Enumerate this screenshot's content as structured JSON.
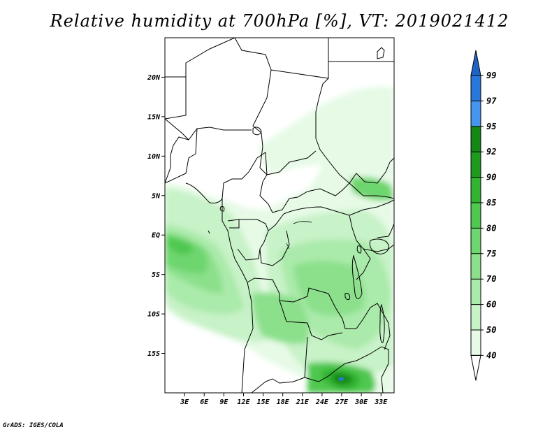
{
  "title": "Relative humidity at 700hPa [%], VT: 2019021412",
  "credit": "GrADS: IGES/COLA",
  "map": {
    "lon_range": [
      0,
      35
    ],
    "lat_range": [
      -20,
      25
    ],
    "lat_ticks": [
      {
        "v": 20,
        "label": "20N"
      },
      {
        "v": 15,
        "label": "15N"
      },
      {
        "v": 10,
        "label": "10N"
      },
      {
        "v": 5,
        "label": "5N"
      },
      {
        "v": 0,
        "label": "EQ"
      },
      {
        "v": -5,
        "label": "5S"
      },
      {
        "v": -10,
        "label": "10S"
      },
      {
        "v": -15,
        "label": "15S"
      }
    ],
    "lon_ticks": [
      {
        "v": 3,
        "label": "3E"
      },
      {
        "v": 6,
        "label": "6E"
      },
      {
        "v": 9,
        "label": "9E"
      },
      {
        "v": 12,
        "label": "12E"
      },
      {
        "v": 15,
        "label": "15E"
      },
      {
        "v": 18,
        "label": "18E"
      },
      {
        "v": 21,
        "label": "21E"
      },
      {
        "v": 24,
        "label": "24E"
      },
      {
        "v": 27,
        "label": "27E"
      },
      {
        "v": 30,
        "label": "30E"
      },
      {
        "v": 33,
        "label": "33E"
      }
    ]
  },
  "colorbar": {
    "levels": [
      "40",
      "50",
      "60",
      "70",
      "75",
      "80",
      "85",
      "90",
      "92",
      "95",
      "97",
      "99"
    ],
    "colors": [
      "#ffffff",
      "#e6fae6",
      "#c8f2c8",
      "#aaeaaa",
      "#8ce08c",
      "#6ed66e",
      "#50c850",
      "#32b432",
      "#1e9b1e",
      "#148714",
      "#4696f0",
      "#2878dc",
      "#1e64c8"
    ]
  },
  "field_colors": {
    "light": "#e6fae6",
    "l1": "#c8f2c8",
    "l2": "#aaeaaa",
    "l3": "#8ce08c",
    "l4": "#6ed66e",
    "l5": "#50c850",
    "l6": "#32b432",
    "l7": "#148714",
    "blue": "#2878dc"
  }
}
